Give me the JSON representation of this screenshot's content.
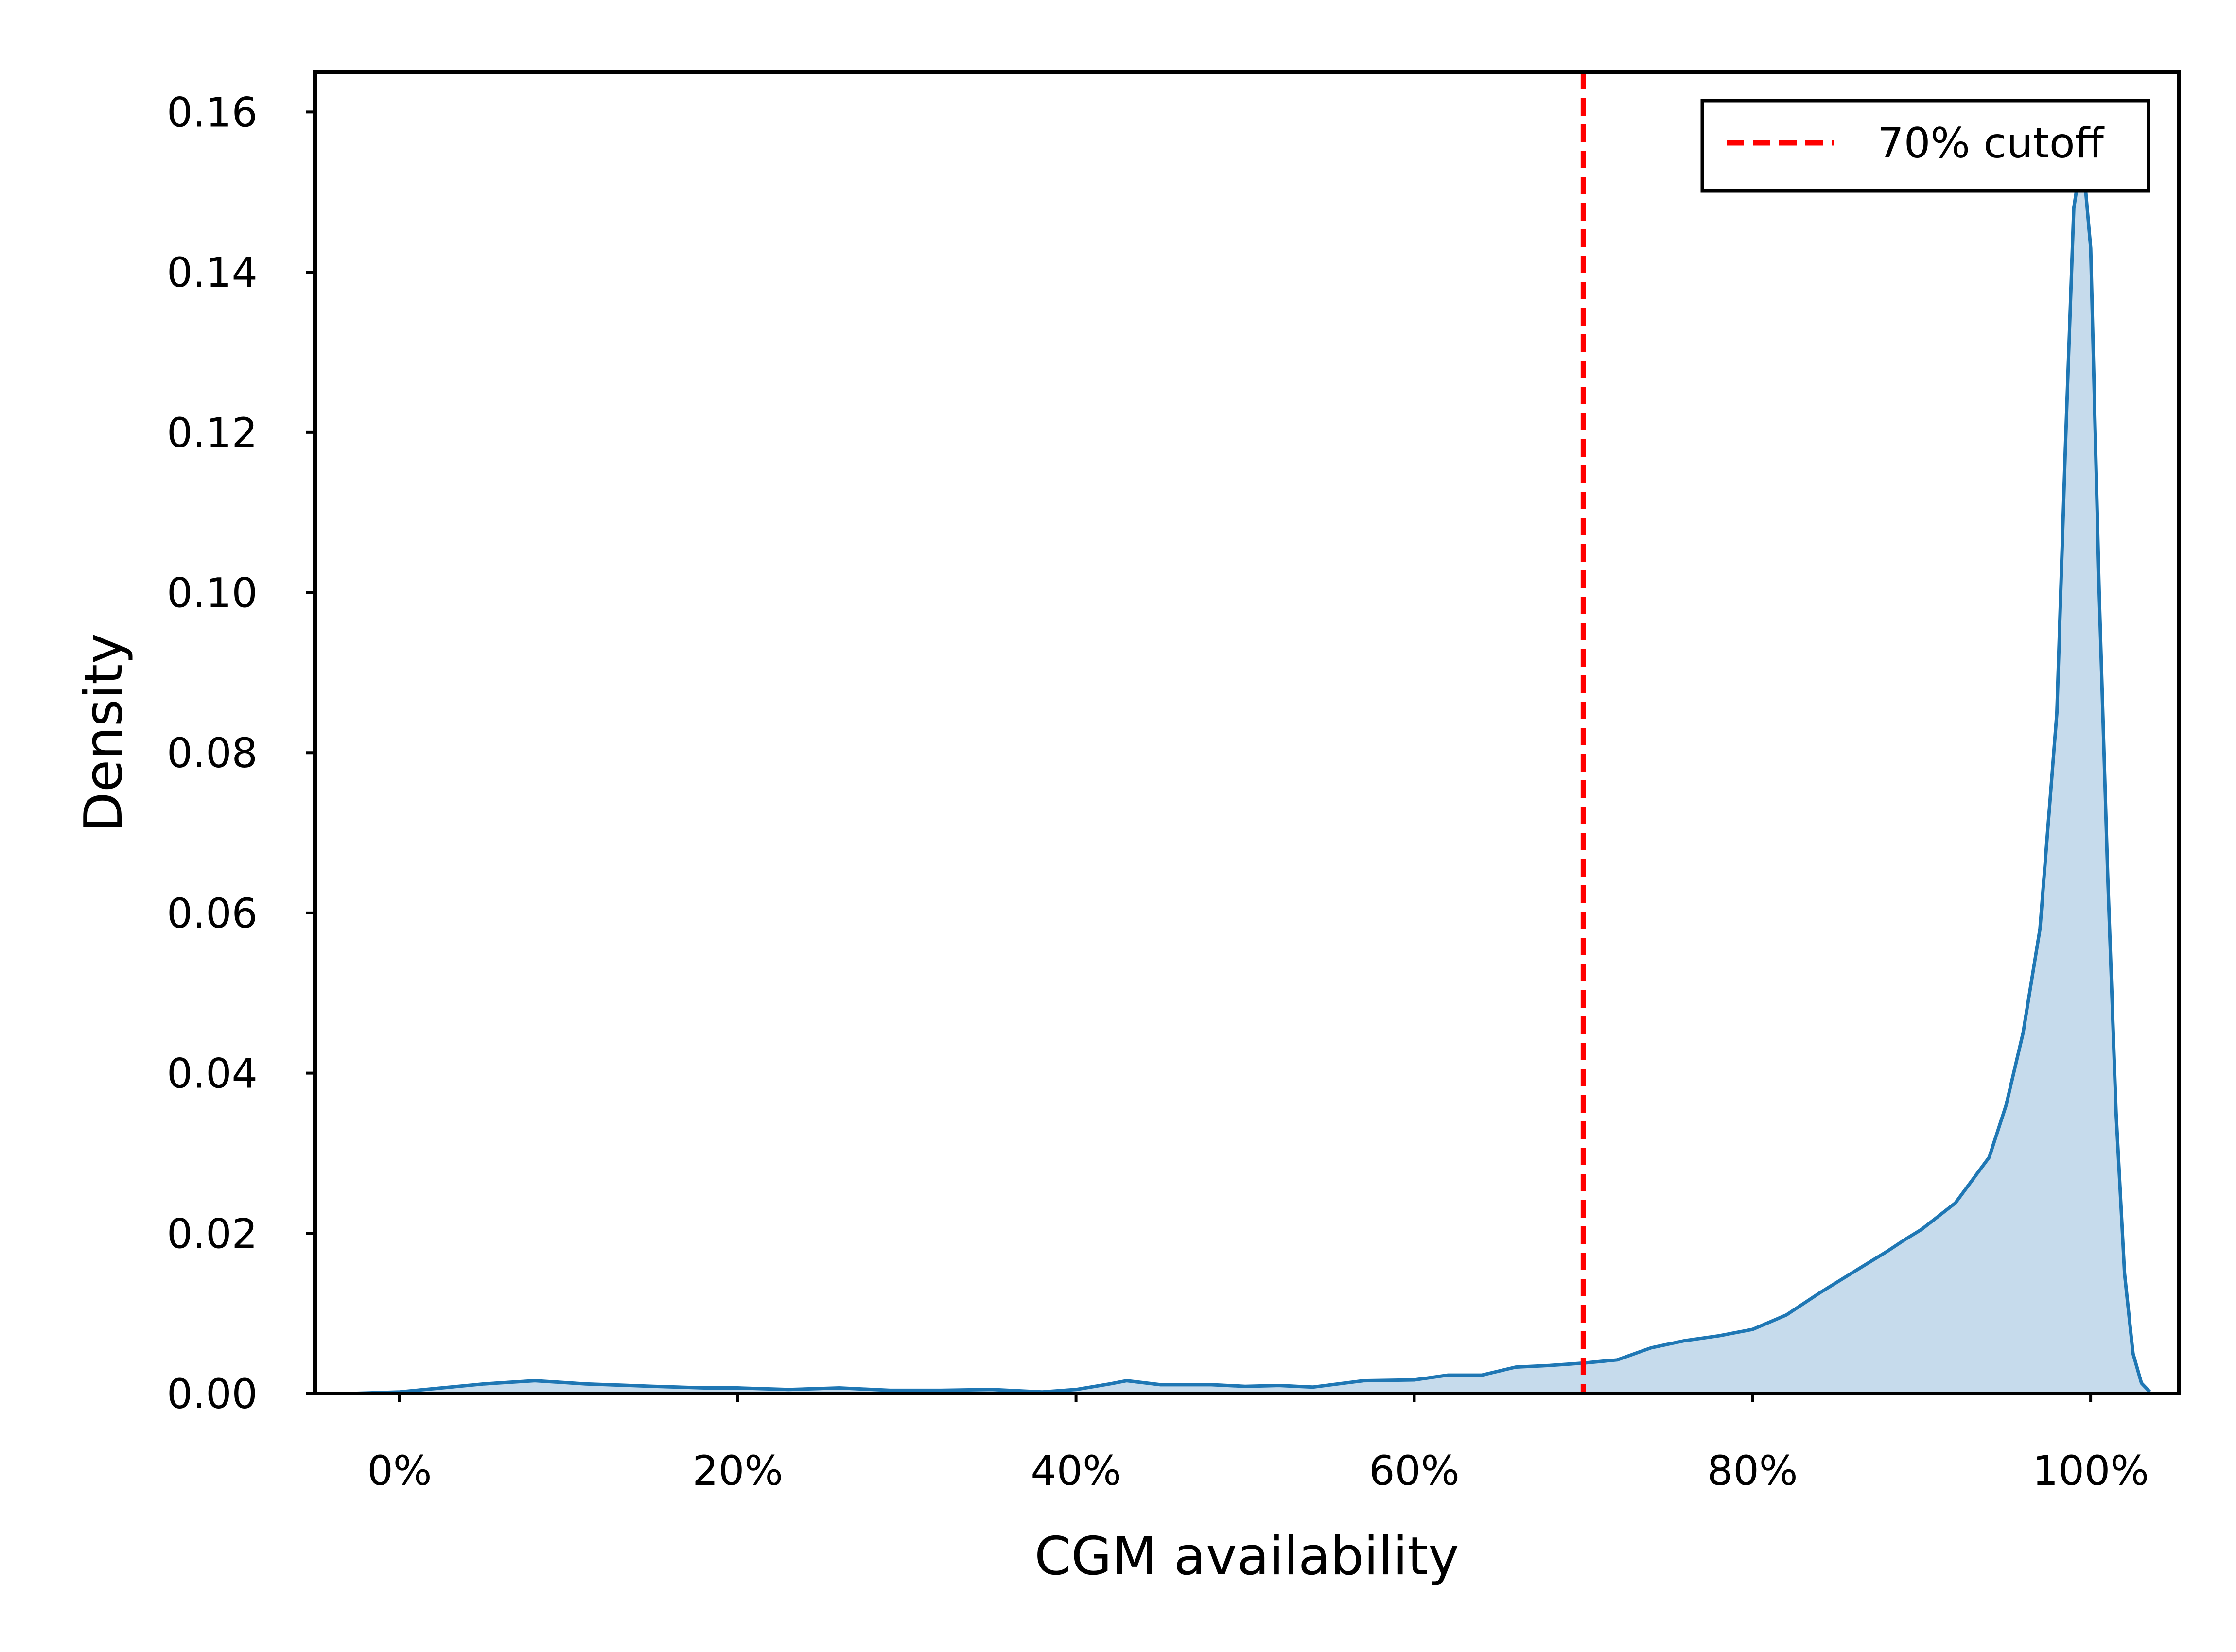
{
  "chart_data": {
    "type": "area",
    "xlabel": "CGM availability",
    "ylabel": "Density",
    "xlim": [
      -0.05,
      1.052
    ],
    "ylim": [
      0,
      0.165
    ],
    "xticks": [
      {
        "value": 0.0,
        "label": "0%"
      },
      {
        "value": 0.2,
        "label": "20%"
      },
      {
        "value": 0.4,
        "label": "40%"
      },
      {
        "value": 0.6,
        "label": "60%"
      },
      {
        "value": 0.8,
        "label": "80%"
      },
      {
        "value": 1.0,
        "label": "100%"
      }
    ],
    "yticks": [
      {
        "value": 0.0,
        "label": "0.00"
      },
      {
        "value": 0.02,
        "label": "0.02"
      },
      {
        "value": 0.04,
        "label": "0.04"
      },
      {
        "value": 0.06,
        "label": "0.06"
      },
      {
        "value": 0.08,
        "label": "0.08"
      },
      {
        "value": 0.1,
        "label": "0.10"
      },
      {
        "value": 0.12,
        "label": "0.12"
      },
      {
        "value": 0.14,
        "label": "0.14"
      },
      {
        "value": 0.16,
        "label": "0.16"
      }
    ],
    "grid": false,
    "legend": {
      "placement": "top-right",
      "entries": [
        {
          "label": "70% cutoff",
          "style": "dashed",
          "color": "#ff0000"
        }
      ]
    },
    "cutoff": {
      "x": 0.7,
      "label": "70% cutoff",
      "color": "#ff0000"
    },
    "series": [
      {
        "line_color": "#1f77b4",
        "fill_color": "#c6dbec",
        "x": [
          -0.03,
          0.0,
          0.02,
          0.05,
          0.08,
          0.11,
          0.15,
          0.18,
          0.2,
          0.23,
          0.26,
          0.29,
          0.32,
          0.35,
          0.38,
          0.4,
          0.42,
          0.43,
          0.45,
          0.48,
          0.5,
          0.52,
          0.54,
          0.57,
          0.6,
          0.62,
          0.64,
          0.66,
          0.68,
          0.7,
          0.72,
          0.74,
          0.76,
          0.78,
          0.8,
          0.82,
          0.84,
          0.86,
          0.88,
          0.89,
          0.9,
          0.92,
          0.94,
          0.95,
          0.96,
          0.97,
          0.98,
          0.985,
          0.99,
          0.995,
          1.0,
          1.005,
          1.01,
          1.015,
          1.02,
          1.025,
          1.03,
          1.035
        ],
        "y": [
          0.0,
          0.0002,
          0.0006,
          0.0012,
          0.0016,
          0.0012,
          0.0009,
          0.0007,
          0.0007,
          0.0005,
          0.0007,
          0.0004,
          0.0004,
          0.0005,
          0.0002,
          0.0005,
          0.0012,
          0.0016,
          0.0011,
          0.0011,
          0.0009,
          0.001,
          0.0008,
          0.0016,
          0.0017,
          0.0023,
          0.0023,
          0.0033,
          0.0035,
          0.0038,
          0.0042,
          0.0057,
          0.0066,
          0.0072,
          0.008,
          0.0098,
          0.0126,
          0.0152,
          0.0178,
          0.0192,
          0.0205,
          0.0238,
          0.0295,
          0.036,
          0.045,
          0.058,
          0.085,
          0.118,
          0.148,
          0.155,
          0.143,
          0.1,
          0.065,
          0.035,
          0.015,
          0.005,
          0.0013,
          0.0002
        ]
      }
    ]
  }
}
